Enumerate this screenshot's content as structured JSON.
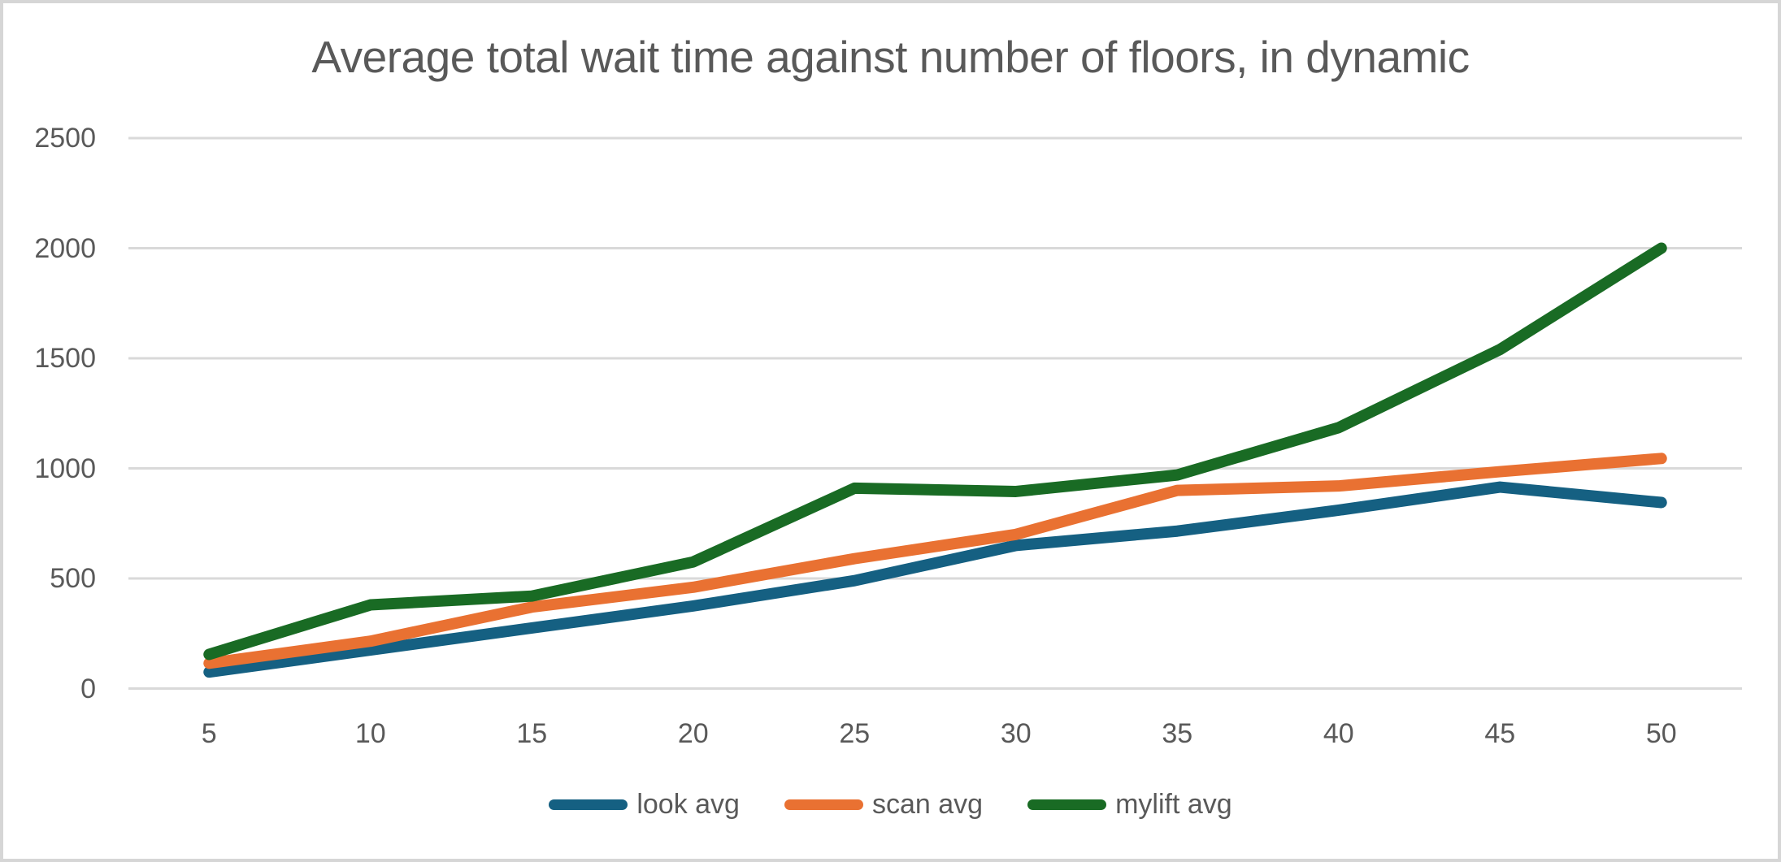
{
  "chart_data": {
    "type": "line",
    "title": "Average total wait time against number of floors, in dynamic",
    "xlabel": "",
    "ylabel": "",
    "x": [
      5,
      10,
      15,
      20,
      25,
      30,
      35,
      40,
      45,
      50
    ],
    "series": [
      {
        "name": "look avg",
        "color": "#156082",
        "values": [
          75,
          175,
          275,
          375,
          490,
          650,
          715,
          810,
          915,
          845
        ]
      },
      {
        "name": "scan avg",
        "color": "#E97132",
        "values": [
          115,
          215,
          370,
          460,
          590,
          700,
          900,
          920,
          985,
          1045
        ]
      },
      {
        "name": "mylift avg",
        "color": "#196B24",
        "values": [
          155,
          380,
          420,
          575,
          910,
          895,
          970,
          1185,
          1540,
          2000
        ]
      }
    ],
    "ylim": [
      0,
      2500
    ],
    "y_ticks": [
      0,
      500,
      1000,
      1500,
      2000,
      2500
    ],
    "grid": "horizontal-only",
    "legend_position": "bottom-center",
    "colors": {
      "text": "#595959",
      "gridline": "#D9D9D9",
      "background": "#FFFFFF",
      "frame_border": "#D6D6D6"
    }
  }
}
